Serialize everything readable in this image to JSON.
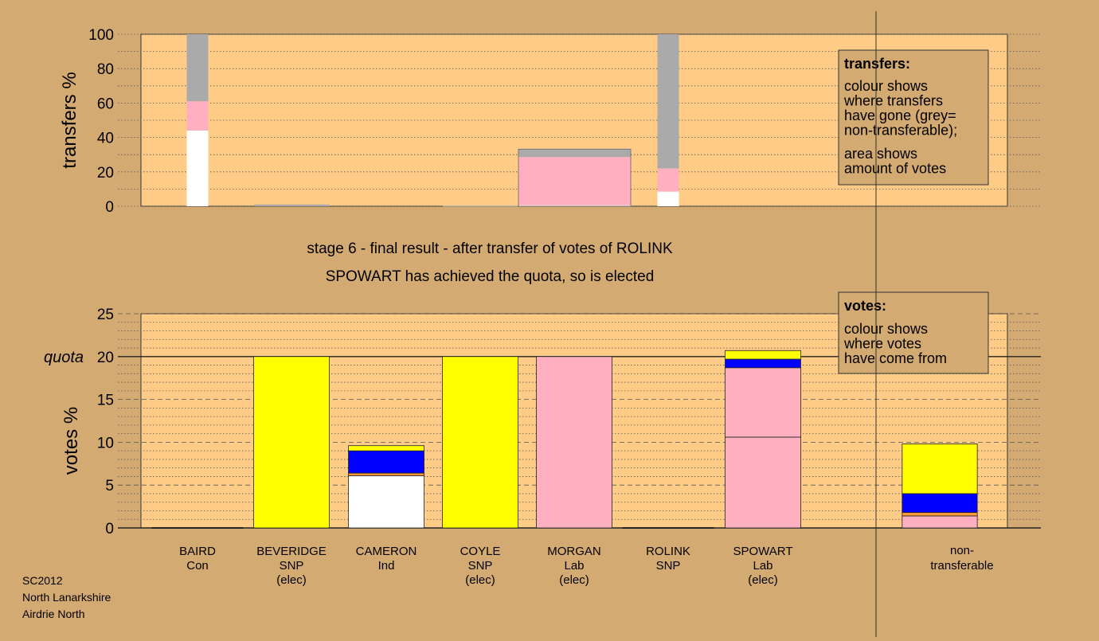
{
  "colors": {
    "background": "#d4aa73",
    "plot_area": "#ffcc88",
    "yellow": "#ffff00",
    "pink": "#ffb0c0",
    "blue": "#0000ff",
    "white": "#ffffff",
    "grey": "#aaaaaa",
    "orange": "#ff9933"
  },
  "caption": {
    "line1": "stage 6 - final result - after transfer of votes of ROLINK",
    "line2": "SPOWART has achieved the quota, so is elected"
  },
  "footer": {
    "line1": "SC2012",
    "line2": "North Lanarkshire",
    "line3": "Airdrie North"
  },
  "candidates": [
    {
      "name": "BAIRD",
      "party": "Con",
      "status": ""
    },
    {
      "name": "BEVERIDGE",
      "party": "SNP",
      "status": "(elec)"
    },
    {
      "name": "CAMERON",
      "party": "Ind",
      "status": ""
    },
    {
      "name": "COYLE",
      "party": "SNP",
      "status": "(elec)"
    },
    {
      "name": "MORGAN",
      "party": "Lab",
      "status": "(elec)"
    },
    {
      "name": "ROLINK",
      "party": "SNP",
      "status": ""
    },
    {
      "name": "SPOWART",
      "party": "Lab",
      "status": "(elec)"
    }
  ],
  "nontransferable": {
    "line1": "non-",
    "line2": "transferable"
  },
  "chart_data": [
    {
      "type": "bar",
      "stacked": true,
      "ylabel": "transfers %",
      "ylim": [
        0,
        100
      ],
      "yticks": [
        0,
        20,
        40,
        60,
        80,
        100
      ],
      "categories": [
        "BAIRD",
        "BEVERIDGE",
        "CAMERON",
        "COYLE",
        "MORGAN",
        "ROLINK",
        "SPOWART"
      ],
      "bars": [
        {
          "segments": [
            {
              "color": "white",
              "value": 44
            },
            {
              "color": "pink",
              "value": 17
            },
            {
              "color": "grey",
              "value": 39
            }
          ]
        },
        {
          "segments": [
            {
              "color": "grey",
              "value": 1
            }
          ]
        },
        {
          "segments": []
        },
        {
          "segments": [
            {
              "color": "grey",
              "value": 0.3
            }
          ]
        },
        {
          "segments": [
            {
              "color": "white",
              "value": 0.6
            },
            {
              "color": "pink",
              "value": 28
            },
            {
              "color": "grey",
              "value": 4.6
            }
          ]
        },
        {
          "segments": [
            {
              "color": "white",
              "value": 8.5
            },
            {
              "color": "pink",
              "value": 13.5
            },
            {
              "color": "grey",
              "value": 78
            }
          ]
        },
        {
          "segments": []
        }
      ],
      "legend": {
        "title": "transfers:",
        "lines1": [
          "colour shows",
          "where transfers",
          "have gone (grey=",
          "non-transferable);"
        ],
        "lines2": [
          "area shows",
          "amount of votes"
        ]
      }
    },
    {
      "type": "bar",
      "stacked": true,
      "ylabel": "votes %",
      "ylim": [
        0,
        25
      ],
      "yticks": [
        0,
        5,
        10,
        15,
        20,
        25
      ],
      "quota": 20,
      "quota_label": "quota",
      "categories": [
        "BAIRD",
        "BEVERIDGE",
        "CAMERON",
        "COYLE",
        "MORGAN",
        "ROLINK",
        "SPOWART",
        "non-transferable"
      ],
      "bars": [
        {
          "segments": []
        },
        {
          "segments": [
            {
              "color": "yellow",
              "value": 20
            }
          ]
        },
        {
          "segments": [
            {
              "color": "white",
              "value": 6.1
            },
            {
              "color": "orange",
              "value": 0.3
            },
            {
              "color": "blue",
              "value": 2.6
            },
            {
              "color": "yellow",
              "value": 0.6
            }
          ]
        },
        {
          "segments": [
            {
              "color": "yellow",
              "value": 20
            }
          ]
        },
        {
          "segments": [
            {
              "color": "pink",
              "value": 20
            }
          ]
        },
        {
          "segments": []
        },
        {
          "segments": [
            {
              "color": "pink",
              "value": 10.6
            },
            {
              "color": "pink",
              "value": 8.1
            },
            {
              "color": "blue",
              "value": 1.0
            },
            {
              "color": "yellow",
              "value": 1.0
            }
          ]
        },
        {
          "segments": [
            {
              "color": "pink",
              "value": 1.4
            },
            {
              "color": "orange",
              "value": 0.4
            },
            {
              "color": "blue",
              "value": 2.2
            },
            {
              "color": "yellow",
              "value": 5.8
            }
          ]
        }
      ],
      "legend": {
        "title": "votes:",
        "lines1": [
          "colour shows",
          "where votes",
          "have come from"
        ]
      }
    }
  ]
}
